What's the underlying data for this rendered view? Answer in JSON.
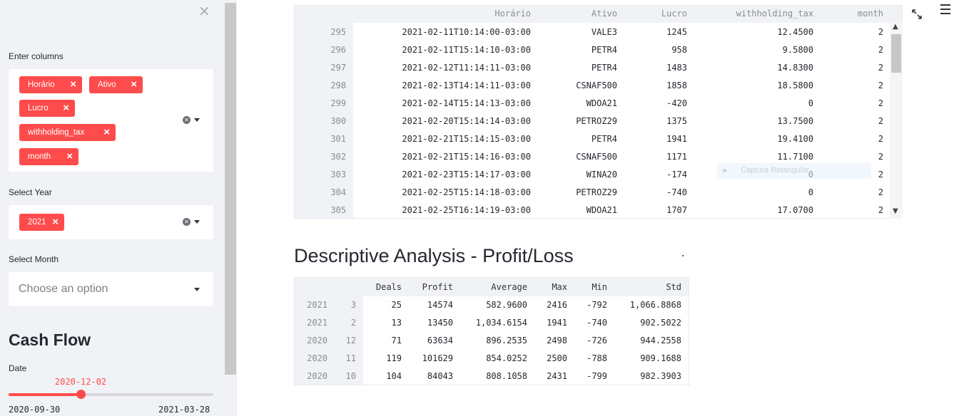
{
  "sidebar": {
    "close_icon": "×",
    "columns": {
      "label": "Enter columns",
      "tags": [
        "Horário",
        "Ativo",
        "Lucro",
        "withholding_tax",
        "month"
      ]
    },
    "year": {
      "label": "Select Year",
      "tags": [
        "2021"
      ]
    },
    "month": {
      "label": "Select Month",
      "placeholder": "Choose an option"
    },
    "cash_flow": {
      "title": "Cash Flow",
      "date_label": "Date",
      "value": "2020-12-02",
      "min": "2020-09-30",
      "max": "2021-03-28",
      "fraction": 0.352
    },
    "colors": {
      "accent": "#ff4b4b",
      "bg": "#f0f2f6"
    }
  },
  "data_table": {
    "columns": [
      "Horário",
      "Ativo",
      "Lucro",
      "withholding_tax",
      "month"
    ],
    "rows": [
      [
        "295",
        "2021-02-11T10:14:00-03:00",
        "VALE3",
        "1245",
        "12.4500",
        "2"
      ],
      [
        "296",
        "2021-02-11T15:14:10-03:00",
        "PETR4",
        "958",
        "9.5800",
        "2"
      ],
      [
        "297",
        "2021-02-12T11:14:11-03:00",
        "PETR4",
        "1483",
        "14.8300",
        "2"
      ],
      [
        "298",
        "2021-02-13T14:14:11-03:00",
        "CSNAF500",
        "1858",
        "18.5800",
        "2"
      ],
      [
        "299",
        "2021-02-14T15:14:13-03:00",
        "WDOA21",
        "-420",
        "0",
        "2"
      ],
      [
        "300",
        "2021-02-20T15:14:14-03:00",
        "PETROZ29",
        "1375",
        "13.7500",
        "2"
      ],
      [
        "301",
        "2021-02-21T15:14:15-03:00",
        "PETR4",
        "1941",
        "19.4100",
        "2"
      ],
      [
        "302",
        "2021-02-21T15:14:16-03:00",
        "CSNAF500",
        "1171",
        "11.7100",
        "2"
      ],
      [
        "303",
        "2021-02-23T15:14:17-03:00",
        "WINA20",
        "-174",
        "0",
        "2"
      ],
      [
        "304",
        "2021-02-25T15:14:18-03:00",
        "PETROZ29",
        "-740",
        "0",
        "2"
      ],
      [
        "305",
        "2021-02-25T16:14:19-03:00",
        "WDOA21",
        "1707",
        "17.0700",
        "2"
      ]
    ],
    "tooltip": "Captura Retangular"
  },
  "analysis": {
    "title": "Descriptive Analysis - Profit/Loss",
    "columns": [
      "Deals",
      "Profit",
      "Average",
      "Max",
      "Min",
      "Std"
    ],
    "rows": [
      [
        "2021",
        "3",
        "25",
        "14574",
        "582.9600",
        "2416",
        "-792",
        "1,066.8868"
      ],
      [
        "2021",
        "2",
        "13",
        "13450",
        "1,034.6154",
        "1941",
        "-740",
        "902.5022"
      ],
      [
        "2020",
        "12",
        "71",
        "63634",
        "896.2535",
        "2498",
        "-726",
        "944.2558"
      ],
      [
        "2020",
        "11",
        "119",
        "101629",
        "854.0252",
        "2500",
        "-788",
        "909.1688"
      ],
      [
        "2020",
        "10",
        "104",
        "84043",
        "808.1058",
        "2431",
        "-799",
        "982.3903"
      ]
    ]
  }
}
